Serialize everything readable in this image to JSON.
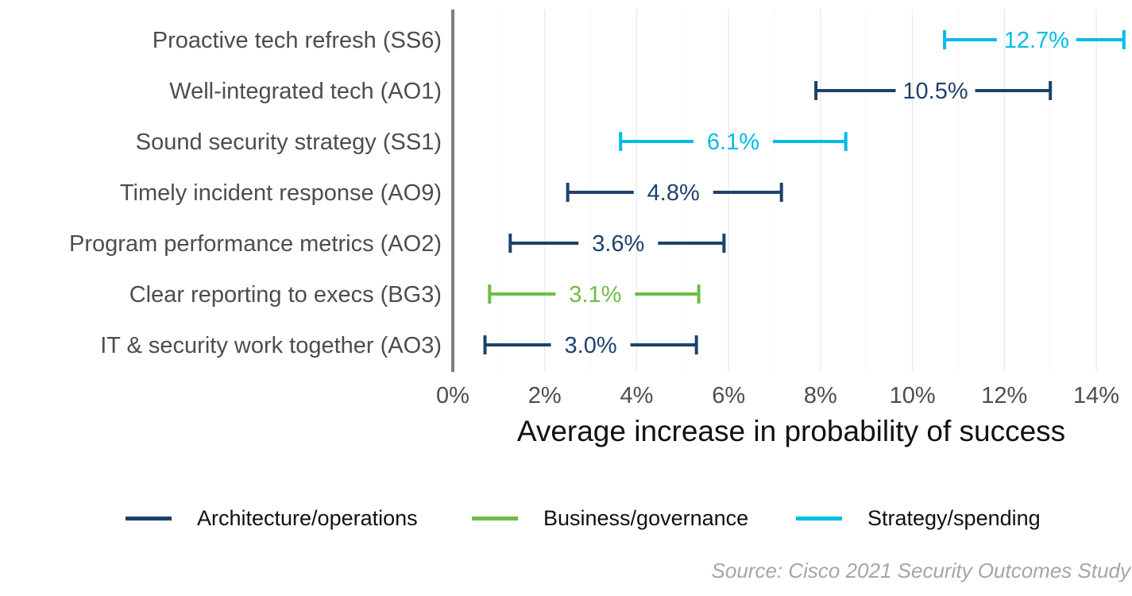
{
  "chart_data": {
    "type": "interval",
    "title": "",
    "xlabel": "Average increase in probability of success",
    "ylabel": "",
    "xlim": [
      0,
      14.7
    ],
    "x_ticks": [
      "0%",
      "2%",
      "4%",
      "6%",
      "8%",
      "10%",
      "12%",
      "14%"
    ],
    "x_tick_values": [
      0,
      2,
      4,
      6,
      8,
      10,
      12,
      14
    ],
    "grid": "vertical",
    "legend_position": "bottom",
    "categories": [
      "Proactive tech refresh (SS6)",
      "Well-integrated tech (AO1)",
      "Sound security strategy (SS1)",
      "Timely incident response (AO9)",
      "Program performance metrics (AO2)",
      "Clear reporting to execs (BG3)",
      "IT & security work together (AO3)"
    ],
    "points": [
      {
        "category": "Proactive tech refresh (SS6)",
        "group": "Strategy/spending",
        "value": 12.7,
        "label": "12.7%",
        "low": 10.7,
        "high": 14.6
      },
      {
        "category": "Well-integrated tech (AO1)",
        "group": "Architecture/operations",
        "value": 10.5,
        "label": "10.5%",
        "low": 7.9,
        "high": 13.0
      },
      {
        "category": "Sound security strategy (SS1)",
        "group": "Strategy/spending",
        "value": 6.1,
        "label": "6.1%",
        "low": 3.65,
        "high": 8.55
      },
      {
        "category": "Timely incident response (AO9)",
        "group": "Architecture/operations",
        "value": 4.8,
        "label": "4.8%",
        "low": 2.5,
        "high": 7.15
      },
      {
        "category": "Program performance metrics (AO2)",
        "group": "Architecture/operations",
        "value": 3.6,
        "label": "3.6%",
        "low": 1.25,
        "high": 5.9
      },
      {
        "category": "Clear reporting to execs (BG3)",
        "group": "Business/governance",
        "value": 3.1,
        "label": "3.1%",
        "low": 0.8,
        "high": 5.35
      },
      {
        "category": "IT & security work together (AO3)",
        "group": "Architecture/operations",
        "value": 3.0,
        "label": "3.0%",
        "low": 0.7,
        "high": 5.3
      }
    ],
    "legend": [
      {
        "name": "Architecture/operations",
        "color": "#1e416c"
      },
      {
        "name": "Business/governance",
        "color": "#6cbe45"
      },
      {
        "name": "Strategy/spending",
        "color": "#00bceb"
      }
    ]
  },
  "source": "Source: Cisco 2021 Security Outcomes Study"
}
